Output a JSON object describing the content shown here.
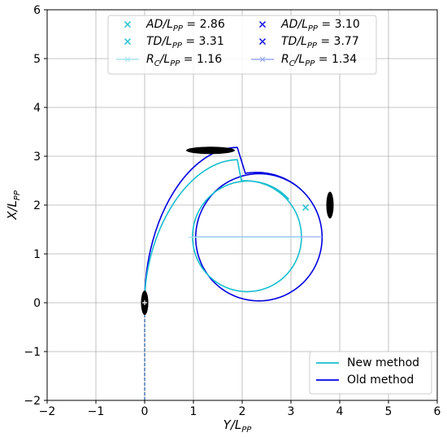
{
  "chart_data": {
    "type": "line",
    "title": "",
    "xlabel": "Y/L",
    "xlabel_sub": "PP",
    "ylabel": "X/L",
    "ylabel_sub": "PP",
    "xlim": [
      -2,
      6
    ],
    "ylim": [
      -2,
      6
    ],
    "xticks": [
      -2,
      -1,
      0,
      1,
      2,
      3,
      4,
      5,
      6
    ],
    "yticks": [
      -2,
      -1,
      0,
      1,
      2,
      3,
      4,
      5,
      6
    ],
    "xtick_labels": [
      "−2",
      "−1",
      "0",
      "1",
      "2",
      "3",
      "4",
      "5",
      "6"
    ],
    "ytick_labels": [
      "−2",
      "−1",
      "0",
      "1",
      "2",
      "3",
      "4",
      "5",
      "6"
    ],
    "grid": true,
    "colors": {
      "new": "#17becf",
      "old": "#0000e0",
      "new_light": "#a6e6f0",
      "old_light": "#9aaaf8",
      "approach": "#3a6fb0",
      "marker": "#000000"
    },
    "series": [
      {
        "name": "New method",
        "approach_y": [
          0,
          0
        ],
        "approach_x": [
          -2,
          0
        ],
        "turn_start": [
          0,
          0
        ],
        "entry_ctrl": [
          [
            0,
            1.4
          ],
          [
            0.85,
            2.9
          ]
        ],
        "entry_end": [
          1.9,
          2.93
        ],
        "circle_center": [
          2.05,
          1.34
        ],
        "circle_radius": 1.16,
        "circle_drift": 0.08
      },
      {
        "name": "Old method",
        "turn_start": [
          0,
          0
        ],
        "entry_ctrl": [
          [
            0,
            1.8
          ],
          [
            0.95,
            3.18
          ]
        ],
        "entry_end": [
          1.9,
          3.18
        ],
        "circle_center": [
          2.3,
          1.33
        ],
        "circle_radius": 1.34,
        "circle_drift": 0.06
      }
    ],
    "markers": {
      "advance_new": [
        3.3,
        1.95
      ],
      "advance_old": [
        3.8,
        2.0
      ],
      "tactical_new": [
        3.31,
        1.34
      ],
      "tactical_old": [
        3.77,
        1.34
      ],
      "radius_new": {
        "y": [
          0.89,
          3.21
        ],
        "x": 1.34
      },
      "radius_old": {
        "y": [
          0.96,
          3.64
        ],
        "x": 1.35
      },
      "ship_blobs": [
        {
          "y": 0,
          "x": 0,
          "orient": "vertical",
          "len": 0.5
        },
        {
          "y": 1.35,
          "x": 3.12,
          "orient": "horizontal",
          "len": 1.0
        },
        {
          "y": 3.8,
          "x": 2.0,
          "orient": "vertical",
          "len": 0.55
        }
      ]
    },
    "legend_top": {
      "placement": "upper center",
      "entries": [
        {
          "prefix": "AD/L",
          "sub": "PP",
          "value": " = 2.86",
          "style": "new-x"
        },
        {
          "prefix": "AD/L",
          "sub": "PP",
          "value": " = 3.10",
          "style": "old-x"
        },
        {
          "prefix": "TD/L",
          "sub": "PP",
          "value": " = 3.31",
          "style": "new-x"
        },
        {
          "prefix": "TD/L",
          "sub": "PP",
          "value": " = 3.77",
          "style": "old-x"
        },
        {
          "prefix": "R",
          "sub_c": "C",
          "mid": "/L",
          "sub": "PP",
          "value": " = 1.16",
          "style": "new-line"
        },
        {
          "prefix": "R",
          "sub_c": "C",
          "mid": "/L",
          "sub": "PP",
          "value": " = 1.34",
          "style": "old-line"
        }
      ]
    },
    "legend_bottom": {
      "placement": "lower right",
      "entries": [
        "New method",
        "Old method"
      ]
    }
  }
}
